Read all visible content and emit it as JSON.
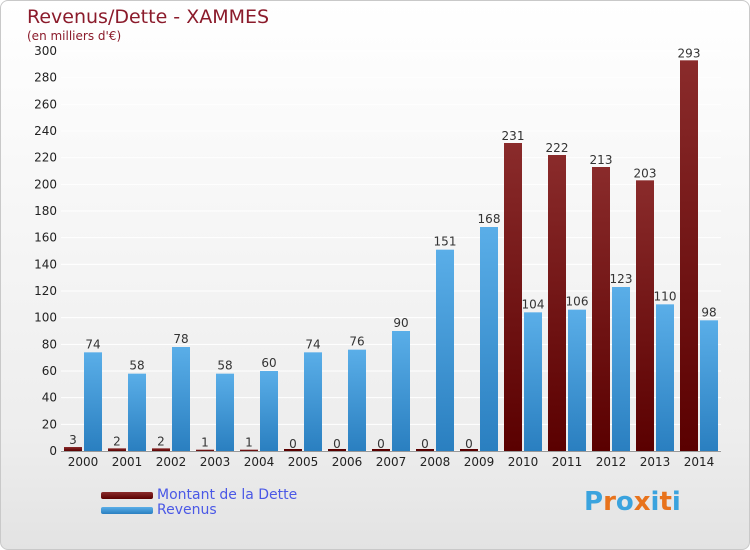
{
  "header": {
    "title": "Revenus/Dette - XAMMES",
    "subtitle": "(en milliers d'€)"
  },
  "legend": {
    "debt_label": "Montant de la Dette",
    "revenue_label": "Revenus"
  },
  "logo": {
    "text": "Proxiti",
    "colors": [
      "#3aa3de",
      "#e8731c",
      "#3aa3de",
      "#e8731c",
      "#3aa3de",
      "#e8731c",
      "#3aa3de"
    ]
  },
  "colors": {
    "debt_light": "#8a2b2b",
    "debt_dark": "#5a0000",
    "revenue_light": "#5aaee8",
    "revenue_dark": "#2a7fc0",
    "grid": "#ffffff",
    "label_title": "#8b1b2b",
    "legend_text": "#4a58e6"
  },
  "chart_data": {
    "type": "bar",
    "title": "Revenus/Dette - XAMMES",
    "subtitle": "(en milliers d'€)",
    "categories": [
      "2000",
      "2001",
      "2002",
      "2003",
      "2004",
      "2005",
      "2006",
      "2007",
      "2008",
      "2009",
      "2010",
      "2011",
      "2012",
      "2013",
      "2014"
    ],
    "series": [
      {
        "name": "Montant de la Dette",
        "values": [
          3,
          2,
          2,
          1,
          1,
          0,
          0,
          0,
          0,
          0,
          231,
          222,
          213,
          203,
          293
        ]
      },
      {
        "name": "Revenus",
        "values": [
          74,
          58,
          78,
          58,
          60,
          74,
          76,
          90,
          151,
          168,
          104,
          106,
          123,
          110,
          98
        ]
      }
    ],
    "ylim": [
      0,
      300
    ],
    "yticks": [
      0,
      20,
      40,
      60,
      80,
      100,
      120,
      140,
      160,
      180,
      200,
      220,
      240,
      260,
      280,
      300
    ],
    "grid": true,
    "legend_position": "bottom-left"
  }
}
